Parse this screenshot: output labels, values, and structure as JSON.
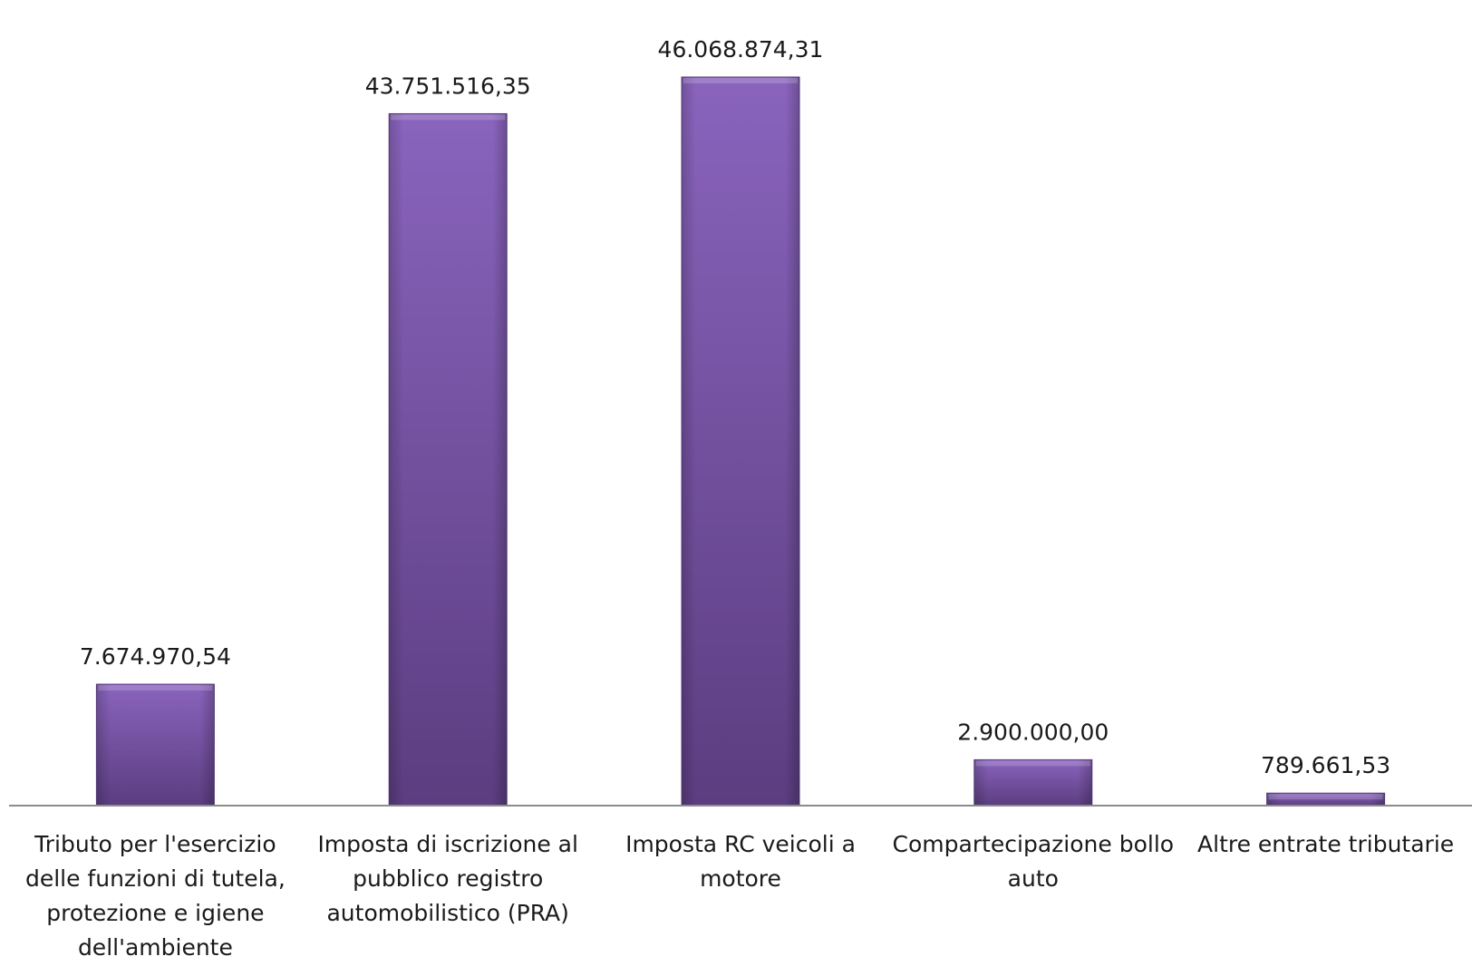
{
  "chart_data": {
    "type": "bar",
    "title": "",
    "xlabel": "",
    "ylabel": "",
    "ylim": [
      0,
      46068874.31
    ],
    "grid": false,
    "legend": "none",
    "bar_color": "#6f4d9b",
    "bar_color_light": "#8a64bd",
    "bar_color_dark": "#5b3d80",
    "axis_color": "#8c8c8c",
    "label_color": "#1a1a1a",
    "categories": [
      [
        "Tributo per l'esercizio",
        "delle funzioni di tutela,",
        "protezione e igiene",
        "dell'ambiente"
      ],
      [
        "Imposta di iscrizione al",
        "pubblico registro",
        "automobilistico (PRA)"
      ],
      [
        "Imposta RC veicoli a",
        "motore"
      ],
      [
        "Compartecipazione bollo",
        "auto"
      ],
      [
        "Altre entrate tributarie"
      ]
    ],
    "values": [
      7674970.54,
      43751516.35,
      46068874.31,
      2900000.0,
      789661.53
    ],
    "value_labels": [
      "7.674.970,54",
      "43.751.516,35",
      "46.068.874,31",
      "2.900.000,00",
      "789.661,53"
    ]
  }
}
